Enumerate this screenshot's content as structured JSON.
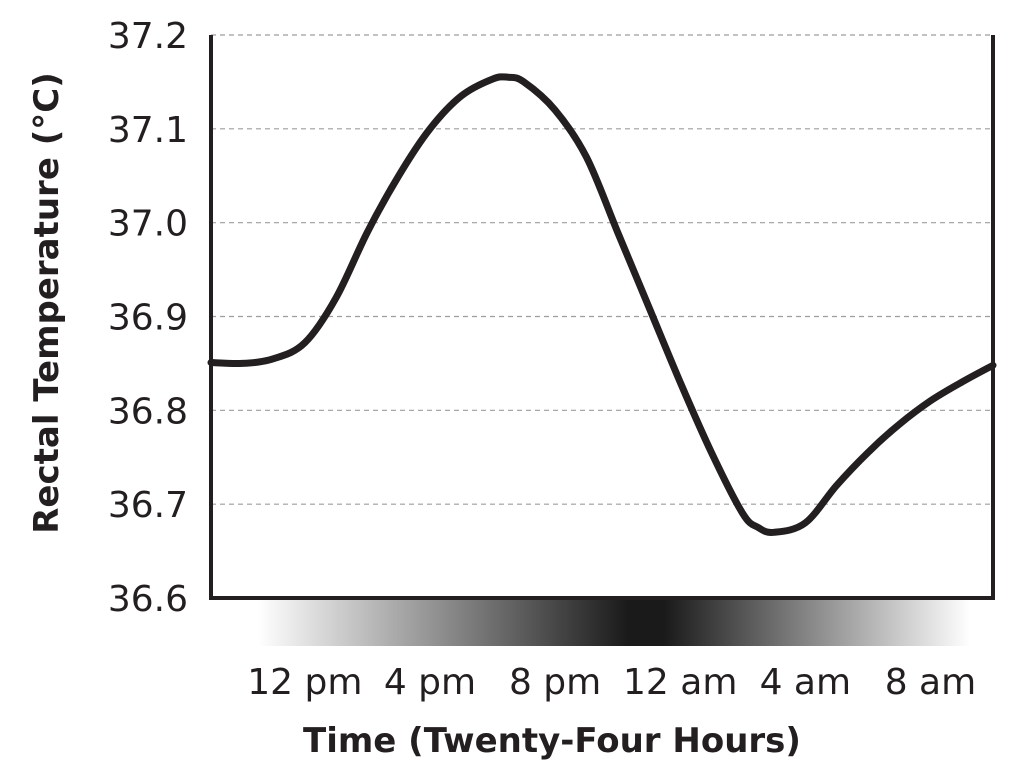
{
  "chart_data": {
    "type": "line",
    "xlabel": "Time (Twenty-Four Hours)",
    "ylabel": "Rectal Temperature (°C)",
    "ylim": [
      36.6,
      37.2
    ],
    "xlim": [
      9,
      34
    ],
    "y_ticks": [
      "36.6",
      "36.7",
      "36.8",
      "36.9",
      "37.0",
      "37.1",
      "37.2"
    ],
    "y_tick_values": [
      36.6,
      36.7,
      36.8,
      36.9,
      37.0,
      37.1,
      37.2
    ],
    "x_ticks": [
      "12 pm",
      "4 pm",
      "8 pm",
      "12 am",
      "4 am",
      "8 am"
    ],
    "x_tick_values": [
      12,
      16,
      20,
      24,
      28,
      32
    ],
    "grid": "horizontal dashed",
    "light_dark_band": "gradient bar under x-axis, darkest near 12 am",
    "series": [
      {
        "x": [
          9.0,
          10.0,
          11.0,
          12.0,
          13.0,
          14.0,
          15.0,
          16.0,
          17.0,
          18.0,
          18.5,
          19.0,
          20.0,
          21.0,
          22.0,
          23.0,
          24.0,
          25.0,
          26.0,
          26.5,
          27.0,
          28.0,
          29.0,
          30.0,
          31.0,
          32.0,
          33.0,
          34.0
        ],
        "values": [
          36.851,
          36.85,
          36.855,
          36.872,
          36.92,
          36.99,
          37.05,
          37.1,
          37.135,
          37.153,
          37.155,
          37.15,
          37.12,
          37.07,
          36.99,
          36.91,
          36.83,
          36.755,
          36.69,
          36.675,
          36.67,
          36.68,
          36.72,
          36.755,
          36.785,
          36.81,
          36.83,
          36.848
        ]
      }
    ]
  }
}
